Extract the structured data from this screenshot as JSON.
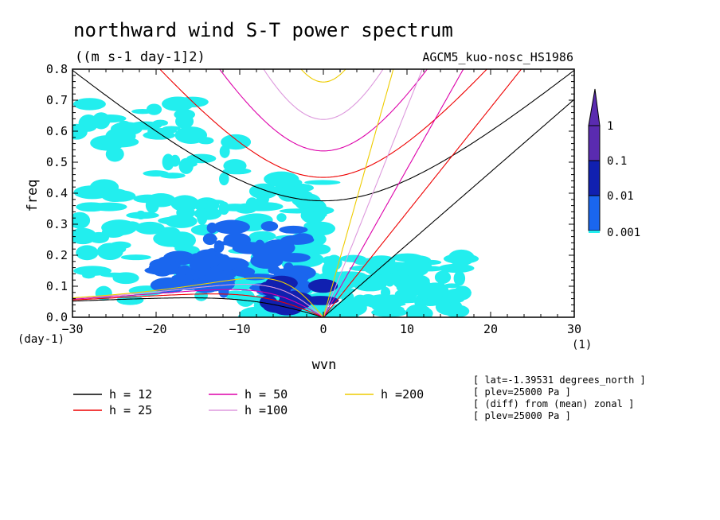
{
  "chart_data": {
    "type": "heatmap",
    "title": "northward wind S-T power spectrum",
    "subtitle": "((m s-1 day-1]2)",
    "model_label": "AGCM5_kuo-nosc_HS1986",
    "xlabel": "wvn",
    "ylabel": "freq",
    "xunit": "(1)",
    "yunit": "(day-1)",
    "xlim": [
      -30,
      30
    ],
    "ylim": [
      0,
      0.8
    ],
    "xticks": [
      "−30",
      "−20",
      "−10",
      "0",
      "10",
      "20",
      "30"
    ],
    "yticks": [
      "0.0",
      "0.1",
      "0.2",
      "0.3",
      "0.4",
      "0.5",
      "0.6",
      "0.7",
      "0.8"
    ],
    "colorbar": {
      "levels": [
        "1",
        "0.1",
        "0.01",
        "0.001"
      ],
      "colors": [
        "#5a2bb0",
        "#1020b0",
        "#1a66ee",
        "#22eeee"
      ]
    },
    "shading_regions": [
      {
        "level": "0.001",
        "x": [
          -30,
          -10
        ],
        "y": [
          0.05,
          0.7
        ]
      },
      {
        "level": "0.001",
        "x": [
          -10,
          0
        ],
        "y": [
          0.0,
          0.45
        ]
      },
      {
        "level": "0.001",
        "x": [
          0,
          17
        ],
        "y": [
          0.0,
          0.2
        ]
      },
      {
        "level": "0.01",
        "x": [
          -14,
          -2
        ],
        "y": [
          0.08,
          0.3
        ]
      },
      {
        "level": "0.01",
        "x": [
          -20,
          -12
        ],
        "y": [
          0.1,
          0.2
        ]
      },
      {
        "level": "0.1",
        "x": [
          -8,
          0
        ],
        "y": [
          0.02,
          0.12
        ]
      }
    ],
    "series": [
      {
        "name": "h = 12",
        "equivalent_depth": 12,
        "color": "#000000"
      },
      {
        "name": "h = 25",
        "equivalent_depth": 25,
        "color": "#ee0000"
      },
      {
        "name": "h = 50",
        "equivalent_depth": 50,
        "color": "#dd00aa"
      },
      {
        "name": "h =100",
        "equivalent_depth": 100,
        "color": "#dd99dd"
      },
      {
        "name": "h =200",
        "equivalent_depth": 200,
        "color": "#eecc00"
      }
    ],
    "annotations": [
      "[ lat=-1.39531 degrees_north ]",
      "[ plev=25000 Pa ]",
      "[ (diff) from (mean) zonal ]",
      "[ plev=25000 Pa ]"
    ]
  }
}
